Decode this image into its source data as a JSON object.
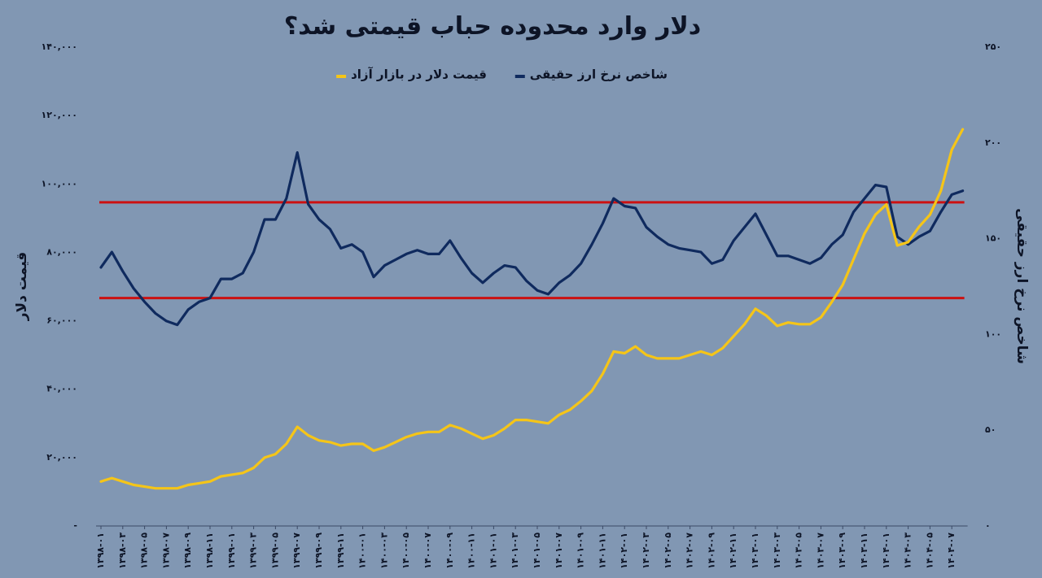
{
  "chart_data": {
    "type": "line",
    "title": "دلار وارد محدوده حباب قیمتی شد؟",
    "y_label": "قیمت دلار",
    "y2_label": "شاخص نرخ ارز حقیقی",
    "categories": [
      "۱۳۹۸-۰۱",
      null,
      "۱۳۹۸-۰۳",
      null,
      "۱۳۹۸-۰۵",
      null,
      "۱۳۹۸-۰۷",
      null,
      "۱۳۹۸-۰۹",
      null,
      "۱۳۹۸-۱۱",
      null,
      "۱۳۹۹-۰۱",
      null,
      "۱۳۹۹-۰۳",
      null,
      "۱۳۹۹-۰۵",
      null,
      "۱۳۹۹-۰۷",
      null,
      "۱۳۹۹-۰۹",
      null,
      "۱۳۹۹-۱۱",
      null,
      "۱۴۰۰-۰۱",
      null,
      "۱۴۰۰-۰۳",
      null,
      "۱۴۰۰-۰۵",
      null,
      "۱۴۰۰-۰۷",
      null,
      "۱۴۰۰-۰۹",
      null,
      "۱۴۰۰-۱۱",
      null,
      "۱۴۰۱-۰۱",
      null,
      "۱۴۰۱-۰۳",
      null,
      "۱۴۰۱-۰۵",
      null,
      "۱۴۰۱-۰۷",
      null,
      "۱۴۰۱-۰۹",
      null,
      "۱۴۰۱-۱۱",
      null,
      "۱۴۰۲-۰۱",
      null,
      "۱۴۰۲-۰۳",
      null,
      "۱۴۰۲-۰۵",
      null,
      "۱۴۰۲-۰۷",
      null,
      "۱۴۰۲-۰۹",
      null,
      "۱۴۰۲-۱۱",
      null,
      "۱۴۰۳-۰۱",
      null,
      "۱۴۰۳-۰۳",
      null,
      "۱۴۰۳-۰۵",
      null,
      "۱۴۰۳-۰۷",
      null,
      "۱۴۰۳-۰۹",
      null,
      "۱۴۰۳-۱۱",
      null,
      "۱۴۰۴-۰۱",
      null,
      "۱۴۰۴-۰۳",
      null,
      "۱۴۰۴-۰۵",
      null,
      "۱۴۰۴-۰۷",
      null
    ],
    "series": [
      {
        "name": "شاخص نرخ ارز حقیقی",
        "color": "#0f2a5e",
        "axis": "y2",
        "values": [
          135,
          143,
          133,
          124,
          117,
          111,
          107,
          105,
          113,
          117,
          119,
          129,
          129,
          132,
          143,
          160,
          160,
          171,
          195,
          168,
          160,
          155,
          145,
          147,
          143,
          130,
          136,
          139,
          142,
          144,
          142,
          142,
          149,
          140,
          132,
          127,
          132,
          136,
          135,
          128,
          123,
          121,
          127,
          131,
          137,
          147,
          158,
          171,
          167,
          166,
          156,
          151,
          147,
          145,
          144,
          143,
          137,
          139,
          149,
          156,
          163,
          152,
          141,
          141,
          139,
          137,
          140,
          147,
          152,
          164,
          171,
          178,
          177,
          151,
          147,
          151,
          154,
          164,
          173,
          175
        ]
      },
      {
        "name": "قیمت دلار در بازار آزاد",
        "color": "#f5c518",
        "axis": "y",
        "values": [
          13000,
          14000,
          13000,
          12000,
          11500,
          11000,
          11000,
          11000,
          12000,
          12500,
          13000,
          14500,
          15000,
          15500,
          17000,
          20000,
          21000,
          24000,
          29000,
          26500,
          25000,
          24500,
          23500,
          24000,
          24000,
          22000,
          23000,
          24500,
          26000,
          27000,
          27500,
          27500,
          29500,
          28500,
          27000,
          25500,
          26500,
          28500,
          31000,
          31000,
          30500,
          30000,
          32500,
          34000,
          36500,
          39500,
          44500,
          51000,
          50500,
          52500,
          50000,
          49000,
          49000,
          49000,
          50000,
          51000,
          50000,
          52000,
          55500,
          59000,
          63500,
          61500,
          58500,
          59500,
          59000,
          59000,
          61000,
          65500,
          70500,
          78000,
          85500,
          91000,
          94000,
          82000,
          83000,
          87500,
          91000,
          98000,
          110000,
          116000
        ]
      }
    ],
    "reference_lines": [
      {
        "value": 169,
        "axis": "y2",
        "color": "#cc1111"
      },
      {
        "value": 119,
        "axis": "y2",
        "color": "#cc1111"
      }
    ],
    "ylim": [
      0,
      140000
    ],
    "yticks": [
      {
        "value": 0,
        "label": "-"
      },
      {
        "value": 20000,
        "label": "۲۰,۰۰۰"
      },
      {
        "value": 40000,
        "label": "۴۰,۰۰۰"
      },
      {
        "value": 60000,
        "label": "۶۰,۰۰۰"
      },
      {
        "value": 80000,
        "label": "۸۰,۰۰۰"
      },
      {
        "value": 100000,
        "label": "۱۰۰,۰۰۰"
      },
      {
        "value": 120000,
        "label": "۱۲۰,۰۰۰"
      },
      {
        "value": 140000,
        "label": "۱۴۰,۰۰۰"
      }
    ],
    "y2lim": [
      0,
      250
    ],
    "y2ticks": [
      {
        "value": 0,
        "label": "۰"
      },
      {
        "value": 50,
        "label": "۵۰"
      },
      {
        "value": 100,
        "label": "۱۰۰"
      },
      {
        "value": 150,
        "label": "۱۵۰"
      },
      {
        "value": 200,
        "label": "۲۰۰"
      },
      {
        "value": 250,
        "label": "۲۵۰"
      }
    ],
    "grid": false
  }
}
